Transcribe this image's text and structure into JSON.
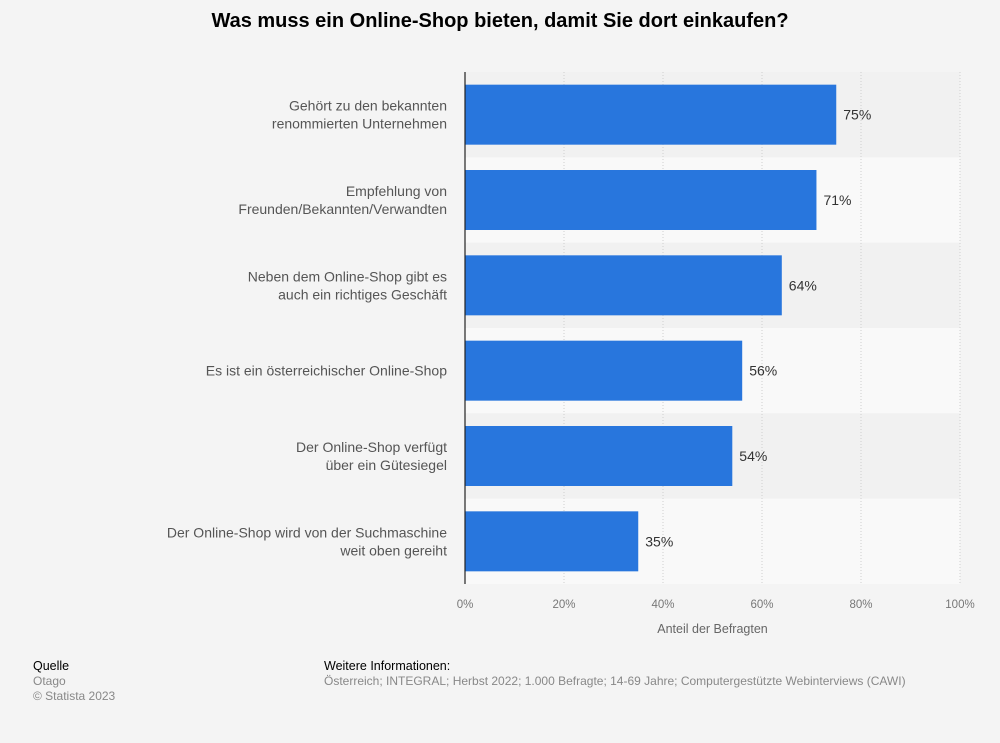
{
  "title": "Was muss ein Online-Shop bieten, damit Sie dort einkaufen?",
  "chart_data": {
    "type": "bar",
    "orientation": "horizontal",
    "categories": [
      [
        "Gehört zu den bekannten",
        "renommierten Unternehmen"
      ],
      [
        "Empfehlung von",
        "Freunden/Bekannten/Verwandten"
      ],
      [
        "Neben dem Online-Shop gibt es",
        "auch ein richtiges Geschäft"
      ],
      [
        "Es ist ein österreichischer Online-Shop"
      ],
      [
        "Der Online-Shop verfügt",
        "über ein Gütesiegel"
      ],
      [
        "Der Online-Shop wird von der Suchmaschine",
        "weit oben gereiht"
      ]
    ],
    "values": [
      75,
      71,
      64,
      56,
      54,
      35
    ],
    "value_labels": [
      "75%",
      "71%",
      "64%",
      "56%",
      "54%",
      "35%"
    ],
    "xlabel": "Anteil der Befragten",
    "xlim": [
      0,
      100
    ],
    "xticks": [
      "0%",
      "20%",
      "40%",
      "60%",
      "80%",
      "100%"
    ],
    "bar_color": "#2876dd",
    "grid": true
  },
  "footer": {
    "source_heading": "Quelle",
    "source": "Otago",
    "copyright": "© Statista 2023",
    "info_heading": "Weitere Informationen:",
    "info": "Österreich; INTEGRAL; Herbst 2022; 1.000 Befragte; 14-69 Jahre; Computergestützte Webinterviews (CAWI)"
  }
}
